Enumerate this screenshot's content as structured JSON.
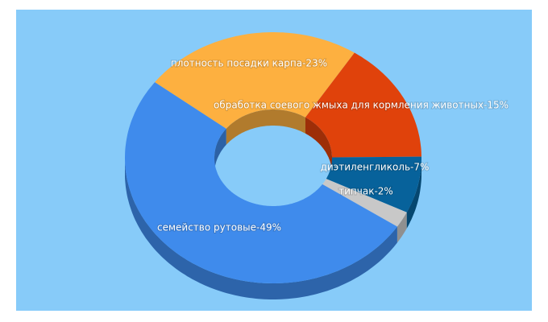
{
  "chart_data": {
    "type": "pie",
    "value_labels": [
      "плотность посадки карпа-23%",
      "обработка соевого жмыха для кормления животных-15%",
      "диэтиленгликоль-7%",
      "типчак-2%",
      "семейство рутовые-49%"
    ],
    "values": [
      23,
      15,
      7,
      2,
      49
    ],
    "colors": [
      "#fdb040",
      "#e0420b",
      "#07629b",
      "#c8c8c8",
      "#3f8bec"
    ],
    "background": "#87cbf9"
  }
}
